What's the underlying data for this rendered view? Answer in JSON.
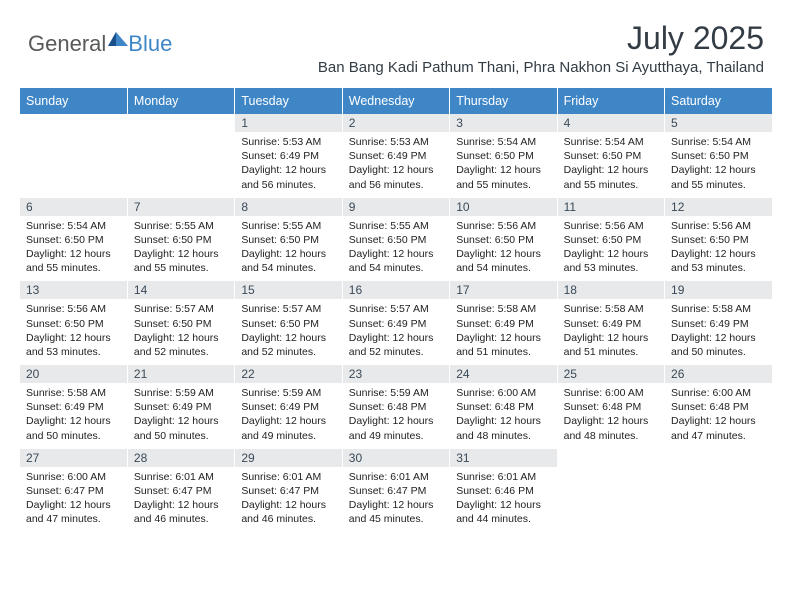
{
  "brand": {
    "general": "General",
    "blue": "Blue"
  },
  "title": "July 2025",
  "location": "Ban Bang Kadi Pathum Thani, Phra Nakhon Si Ayutthaya, Thailand",
  "colors": {
    "header_bg": "#3f86c7",
    "daynum_bg": "#e8e9ea",
    "text": "#222222"
  },
  "weekdays": [
    "Sunday",
    "Monday",
    "Tuesday",
    "Wednesday",
    "Thursday",
    "Friday",
    "Saturday"
  ],
  "weeks": [
    [
      null,
      null,
      {
        "n": "1",
        "sr": "5:53 AM",
        "ss": "6:49 PM",
        "dh": "12",
        "dm": "56"
      },
      {
        "n": "2",
        "sr": "5:53 AM",
        "ss": "6:49 PM",
        "dh": "12",
        "dm": "56"
      },
      {
        "n": "3",
        "sr": "5:54 AM",
        "ss": "6:50 PM",
        "dh": "12",
        "dm": "55"
      },
      {
        "n": "4",
        "sr": "5:54 AM",
        "ss": "6:50 PM",
        "dh": "12",
        "dm": "55"
      },
      {
        "n": "5",
        "sr": "5:54 AM",
        "ss": "6:50 PM",
        "dh": "12",
        "dm": "55"
      }
    ],
    [
      {
        "n": "6",
        "sr": "5:54 AM",
        "ss": "6:50 PM",
        "dh": "12",
        "dm": "55"
      },
      {
        "n": "7",
        "sr": "5:55 AM",
        "ss": "6:50 PM",
        "dh": "12",
        "dm": "55"
      },
      {
        "n": "8",
        "sr": "5:55 AM",
        "ss": "6:50 PM",
        "dh": "12",
        "dm": "54"
      },
      {
        "n": "9",
        "sr": "5:55 AM",
        "ss": "6:50 PM",
        "dh": "12",
        "dm": "54"
      },
      {
        "n": "10",
        "sr": "5:56 AM",
        "ss": "6:50 PM",
        "dh": "12",
        "dm": "54"
      },
      {
        "n": "11",
        "sr": "5:56 AM",
        "ss": "6:50 PM",
        "dh": "12",
        "dm": "53"
      },
      {
        "n": "12",
        "sr": "5:56 AM",
        "ss": "6:50 PM",
        "dh": "12",
        "dm": "53"
      }
    ],
    [
      {
        "n": "13",
        "sr": "5:56 AM",
        "ss": "6:50 PM",
        "dh": "12",
        "dm": "53"
      },
      {
        "n": "14",
        "sr": "5:57 AM",
        "ss": "6:50 PM",
        "dh": "12",
        "dm": "52"
      },
      {
        "n": "15",
        "sr": "5:57 AM",
        "ss": "6:50 PM",
        "dh": "12",
        "dm": "52"
      },
      {
        "n": "16",
        "sr": "5:57 AM",
        "ss": "6:49 PM",
        "dh": "12",
        "dm": "52"
      },
      {
        "n": "17",
        "sr": "5:58 AM",
        "ss": "6:49 PM",
        "dh": "12",
        "dm": "51"
      },
      {
        "n": "18",
        "sr": "5:58 AM",
        "ss": "6:49 PM",
        "dh": "12",
        "dm": "51"
      },
      {
        "n": "19",
        "sr": "5:58 AM",
        "ss": "6:49 PM",
        "dh": "12",
        "dm": "50"
      }
    ],
    [
      {
        "n": "20",
        "sr": "5:58 AM",
        "ss": "6:49 PM",
        "dh": "12",
        "dm": "50"
      },
      {
        "n": "21",
        "sr": "5:59 AM",
        "ss": "6:49 PM",
        "dh": "12",
        "dm": "50"
      },
      {
        "n": "22",
        "sr": "5:59 AM",
        "ss": "6:49 PM",
        "dh": "12",
        "dm": "49"
      },
      {
        "n": "23",
        "sr": "5:59 AM",
        "ss": "6:48 PM",
        "dh": "12",
        "dm": "49"
      },
      {
        "n": "24",
        "sr": "6:00 AM",
        "ss": "6:48 PM",
        "dh": "12",
        "dm": "48"
      },
      {
        "n": "25",
        "sr": "6:00 AM",
        "ss": "6:48 PM",
        "dh": "12",
        "dm": "48"
      },
      {
        "n": "26",
        "sr": "6:00 AM",
        "ss": "6:48 PM",
        "dh": "12",
        "dm": "47"
      }
    ],
    [
      {
        "n": "27",
        "sr": "6:00 AM",
        "ss": "6:47 PM",
        "dh": "12",
        "dm": "47"
      },
      {
        "n": "28",
        "sr": "6:01 AM",
        "ss": "6:47 PM",
        "dh": "12",
        "dm": "46"
      },
      {
        "n": "29",
        "sr": "6:01 AM",
        "ss": "6:47 PM",
        "dh": "12",
        "dm": "46"
      },
      {
        "n": "30",
        "sr": "6:01 AM",
        "ss": "6:47 PM",
        "dh": "12",
        "dm": "45"
      },
      {
        "n": "31",
        "sr": "6:01 AM",
        "ss": "6:46 PM",
        "dh": "12",
        "dm": "44"
      },
      null,
      null
    ]
  ],
  "labels": {
    "sunrise": "Sunrise:",
    "sunset": "Sunset:",
    "daylight": "Daylight:",
    "hours": "hours",
    "and": "and",
    "minutes": "minutes."
  }
}
